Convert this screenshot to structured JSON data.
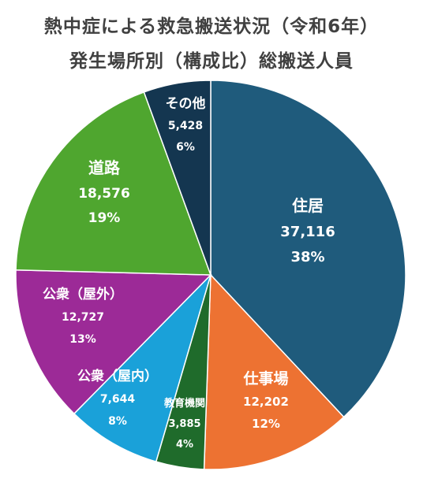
{
  "chart_data": {
    "type": "pie",
    "title_line1": "熱中症による救急搬送状況（令和6年）",
    "title_line2": "発生場所別（構成比）総搬送人員",
    "slices": [
      {
        "label": "住居",
        "value_text": "37,116",
        "value": 37116,
        "percent_text": "38%",
        "color": "#1f5b7c"
      },
      {
        "label": "仕事場",
        "value_text": "12,202",
        "value": 12202,
        "percent_text": "12%",
        "color": "#ed7232"
      },
      {
        "label": "教育機関",
        "value_text": "3,885",
        "value": 3885,
        "percent_text": "4%",
        "color": "#1f6b2b"
      },
      {
        "label": "公衆（屋内）",
        "value_text": "7,644",
        "value": 7644,
        "percent_text": "8%",
        "color": "#1aa1d9"
      },
      {
        "label": "公衆（屋外）",
        "value_text": "12,727",
        "value": 12727,
        "percent_text": "13%",
        "color": "#9c2a97"
      },
      {
        "label": "道路",
        "value_text": "18,576",
        "value": 18576,
        "percent_text": "19%",
        "color": "#4fa62f"
      },
      {
        "label": "その他",
        "value_text": "5,428",
        "value": 5428,
        "percent_text": "6%",
        "color": "#143650"
      }
    ]
  }
}
